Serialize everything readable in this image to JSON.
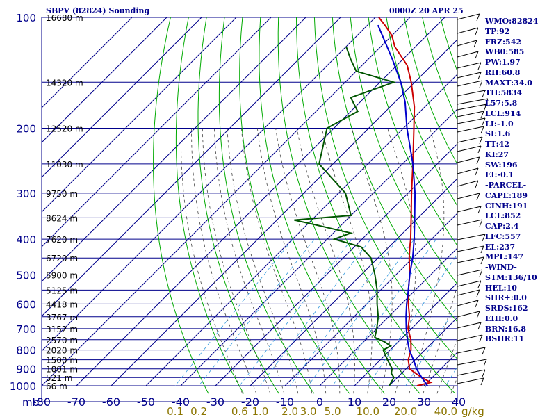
{
  "header": {
    "station": "SBPV (82824) Sounding",
    "time": "0000Z 20 APR 25"
  },
  "indices": [
    "WMO:82824",
    "TP:92",
    "FRZ:542",
    "WB0:585",
    "PW:1.97",
    "RH:60.8",
    "MAXT:34.0",
    "TH:5834",
    "L57:5.8",
    "LCL:914",
    "LI:-1.0",
    "SI:1.6",
    "TT:42",
    "KI:27",
    "SW:196",
    "EI:-0.1",
    "-PARCEL-",
    "CAPE:189",
    "CINH:191",
    "LCL:852",
    "CAP:2.4",
    "LFC:557",
    "EL:237",
    "MPL:147",
    "-WIND-",
    "STM:136/10",
    "HEL:10",
    "SHR+:0.0",
    "SRDS:162",
    "EHI:0.0",
    "BRN:16.8",
    "BSHR:11"
  ],
  "colors": {
    "grid": "#00008b",
    "isotherm": "#00008b",
    "dry_adiabat": "#00aa00",
    "moist_adiabat": "#444444",
    "mixing_ratio": "#3399dd",
    "temperature": "#cc0000",
    "dewpoint": "#005500",
    "parcel": "#0000cc",
    "tick_text": "#00008b",
    "mixing_text": "#8b7500"
  },
  "chart_data": {
    "type": "line",
    "title": "SBPV (82824) Sounding",
    "subtitle": "0000Z 20 APR 25",
    "xlabel": "",
    "ylabel": "mb",
    "x_ticks": [
      "-80",
      "-70",
      "-60",
      "-50",
      "-40",
      "-30",
      "-20",
      "-10",
      "0",
      "10",
      "20",
      "30",
      "40"
    ],
    "pressure_levels": [
      100,
      200,
      300,
      400,
      500,
      600,
      700,
      800,
      900,
      1000
    ],
    "y_tick_labels": [
      "100",
      "200",
      "300",
      "400",
      "500",
      "600",
      "700",
      "800",
      "900",
      "1000"
    ],
    "height_labels": [
      {
        "p": 100,
        "label": "16680 m"
      },
      {
        "p": 150,
        "label": "14320 m"
      },
      {
        "p": 200,
        "label": "12520 m"
      },
      {
        "p": 250,
        "label": "11030 m"
      },
      {
        "p": 300,
        "label": "9750 m"
      },
      {
        "p": 350,
        "label": "8624 m"
      },
      {
        "p": 400,
        "label": "7620 m"
      },
      {
        "p": 450,
        "label": "6720 m"
      },
      {
        "p": 500,
        "label": "5900 m"
      },
      {
        "p": 550,
        "label": "5125 m"
      },
      {
        "p": 600,
        "label": "4418 m"
      },
      {
        "p": 650,
        "label": "3767 m"
      },
      {
        "p": 700,
        "label": "3152 m"
      },
      {
        "p": 750,
        "label": "2570 m"
      },
      {
        "p": 800,
        "label": "2020 m"
      },
      {
        "p": 850,
        "label": "1500 m"
      },
      {
        "p": 900,
        "label": "1001 m"
      },
      {
        "p": 950,
        "label": "521 m"
      },
      {
        "p": 1000,
        "label": "66 m"
      }
    ],
    "mixing_ratio_labels": [
      {
        "w": 0.1,
        "label": "0.1"
      },
      {
        "w": 0.2,
        "label": "0.2"
      },
      {
        "w": 0.6,
        "label": "0.6"
      },
      {
        "w": 1.0,
        "label": "1.0"
      },
      {
        "w": 2.0,
        "label": "2.0"
      },
      {
        "w": 3.0,
        "label": "3.0"
      },
      {
        "w": 5.0,
        "label": "5.0"
      },
      {
        "w": 10.0,
        "label": "10.0"
      },
      {
        "w": 20.0,
        "label": "20.0"
      },
      {
        "w": 40.0,
        "label": "40.0"
      }
    ],
    "mixing_unit": "g/kg",
    "series": [
      {
        "key": "temperature",
        "points": [
          [
            1000,
            28
          ],
          [
            980,
            31
          ],
          [
            950,
            27
          ],
          [
            925,
            24
          ],
          [
            900,
            21
          ],
          [
            850,
            18
          ],
          [
            800,
            16
          ],
          [
            750,
            13
          ],
          [
            700,
            9
          ],
          [
            650,
            6
          ],
          [
            600,
            2
          ],
          [
            550,
            -2
          ],
          [
            500,
            -6
          ],
          [
            450,
            -11
          ],
          [
            420,
            -14
          ],
          [
            400,
            -16
          ],
          [
            350,
            -22
          ],
          [
            300,
            -29
          ],
          [
            250,
            -37
          ],
          [
            200,
            -47
          ],
          [
            175,
            -53
          ],
          [
            150,
            -61
          ],
          [
            135,
            -67
          ],
          [
            120,
            -76
          ],
          [
            112,
            -80
          ],
          [
            105,
            -85
          ],
          [
            100,
            -89
          ]
        ]
      },
      {
        "key": "dewpoint",
        "points": [
          [
            1000,
            20
          ],
          [
            950,
            19
          ],
          [
            925,
            17
          ],
          [
            900,
            16
          ],
          [
            850,
            12
          ],
          [
            800,
            8
          ],
          [
            780,
            9
          ],
          [
            760,
            6
          ],
          [
            740,
            2
          ],
          [
            700,
            0
          ],
          [
            650,
            -3
          ],
          [
            600,
            -7
          ],
          [
            550,
            -11
          ],
          [
            500,
            -16
          ],
          [
            450,
            -22
          ],
          [
            420,
            -28
          ],
          [
            400,
            -38
          ],
          [
            385,
            -35
          ],
          [
            365,
            -48
          ],
          [
            355,
            -55
          ],
          [
            345,
            -40
          ],
          [
            300,
            -48
          ],
          [
            250,
            -64
          ],
          [
            200,
            -72
          ],
          [
            180,
            -68
          ],
          [
            165,
            -74
          ],
          [
            150,
            -66
          ],
          [
            140,
            -80
          ],
          [
            130,
            -85
          ],
          [
            120,
            -90
          ]
        ]
      },
      {
        "key": "parcel",
        "points": [
          [
            1000,
            31
          ],
          [
            950,
            27
          ],
          [
            900,
            23
          ],
          [
            850,
            19.5
          ],
          [
            800,
            15.5
          ],
          [
            750,
            12
          ],
          [
            700,
            8.5
          ],
          [
            650,
            5
          ],
          [
            600,
            1.5
          ],
          [
            550,
            -2
          ],
          [
            500,
            -6
          ],
          [
            450,
            -10
          ],
          [
            400,
            -15
          ],
          [
            350,
            -21
          ],
          [
            300,
            -28
          ],
          [
            250,
            -37
          ],
          [
            200,
            -49
          ],
          [
            170,
            -57
          ],
          [
            150,
            -64
          ],
          [
            130,
            -73
          ],
          [
            115,
            -81
          ],
          [
            105,
            -87
          ]
        ]
      }
    ],
    "ylim": [
      1000,
      100
    ],
    "xlim": [
      -80,
      40
    ],
    "scale": "log-pressure, skewed temperature",
    "grid": true
  }
}
